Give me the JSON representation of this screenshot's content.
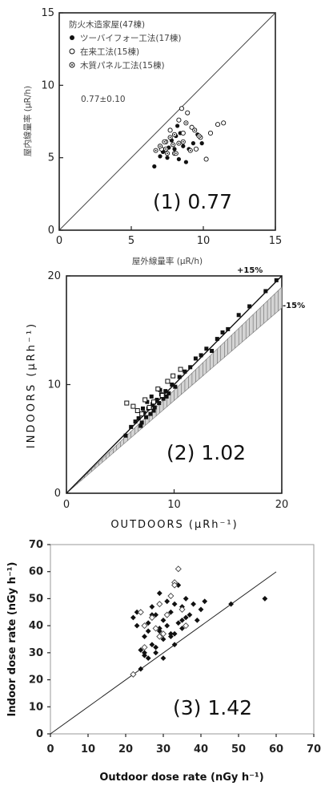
{
  "chart_data": [
    {
      "type": "scatter",
      "title": "防火木造家屋(47棟)",
      "xlabel": "屋外線量率 (μR/h)",
      "ylabel": "屋内線量率 (μR/h)",
      "xlim": [
        0,
        15
      ],
      "ylim": [
        0,
        15
      ],
      "xticks": [
        "0",
        "5",
        "10",
        "15"
      ],
      "yticks": [
        "0",
        "5",
        "10",
        "15"
      ],
      "reference_line": "y = x",
      "stat_text": "0.77±0.10",
      "ratio_label": "(1) 0.77",
      "series": [
        {
          "name": "ツーバイフォー工法(17棟)",
          "marker": "filled",
          "x": [
            6.6,
            7.0,
            7.2,
            7.5,
            7.6,
            7.8,
            8.0,
            8.1,
            8.3,
            8.4,
            8.6,
            8.8,
            9.0,
            9.3,
            9.6,
            9.9,
            8.2
          ],
          "y": [
            4.4,
            5.1,
            5.4,
            5.0,
            5.7,
            6.2,
            5.6,
            6.5,
            4.9,
            6.7,
            5.8,
            4.7,
            5.6,
            6.0,
            6.6,
            6.0,
            7.2
          ]
        },
        {
          "name": "在来工法(15棟)",
          "marker": "open",
          "x": [
            7.1,
            7.4,
            7.7,
            8.0,
            8.3,
            8.6,
            8.9,
            9.2,
            9.5,
            9.8,
            10.2,
            10.5,
            11.0,
            11.4,
            8.5
          ],
          "y": [
            5.6,
            6.1,
            6.9,
            5.3,
            7.6,
            6.7,
            8.1,
            7.1,
            5.6,
            6.4,
            4.9,
            6.7,
            7.3,
            7.4,
            8.4
          ]
        },
        {
          "name": "木質パネル工法(15棟)",
          "marker": "dotted",
          "x": [
            6.7,
            7.0,
            7.3,
            7.5,
            7.7,
            7.9,
            8.1,
            8.3,
            8.6,
            8.8,
            9.1,
            9.4,
            9.7,
            8.0,
            7.4
          ],
          "y": [
            5.5,
            5.8,
            6.1,
            5.3,
            6.4,
            5.9,
            5.3,
            6.0,
            6.1,
            7.4,
            5.5,
            6.9,
            6.5,
            6.6,
            5.6
          ]
        }
      ]
    },
    {
      "type": "scatter",
      "xlabel": "OUTDOORS (μRh⁻¹)",
      "ylabel": "INDOORS (μRh⁻¹)",
      "xlim": [
        0,
        20
      ],
      "ylim": [
        0,
        20
      ],
      "xticks": [
        "0",
        "10",
        "20"
      ],
      "yticks": [
        "0",
        "10",
        "20"
      ],
      "band_labels": [
        "+15%",
        "-15%"
      ],
      "ratio_label": "(2) 1.02",
      "series": [
        {
          "marker": "filled",
          "x": [
            5.5,
            6.0,
            6.4,
            6.7,
            7.0,
            7.2,
            7.4,
            7.6,
            7.8,
            8.0,
            8.2,
            8.4,
            8.6,
            8.8,
            9.0,
            9.2,
            9.5,
            9.8,
            10.1,
            10.5,
            11.0,
            11.5,
            12.0,
            12.5,
            13.0,
            13.5,
            14.0,
            14.5,
            15.0,
            16.0,
            17.0,
            18.5,
            19.5,
            7.1,
            7.5,
            8.1,
            8.7,
            9.3,
            6.9,
            7.9
          ],
          "y": [
            5.3,
            6.1,
            6.6,
            6.9,
            6.5,
            7.4,
            7.0,
            7.8,
            7.3,
            8.2,
            7.9,
            8.6,
            8.3,
            9.1,
            8.7,
            9.4,
            9.2,
            10.0,
            9.8,
            10.7,
            11.2,
            11.6,
            12.4,
            12.7,
            13.3,
            13.1,
            14.2,
            14.8,
            15.1,
            16.4,
            17.2,
            18.6,
            19.6,
            7.8,
            8.4,
            7.6,
            9.5,
            8.9,
            6.2,
            8.9
          ]
        },
        {
          "marker": "open",
          "x": [
            5.6,
            6.2,
            6.6,
            7.0,
            7.3,
            7.7,
            8.1,
            8.5,
            8.9,
            9.4,
            9.9,
            10.6
          ],
          "y": [
            8.3,
            8.0,
            7.6,
            7.3,
            8.6,
            7.9,
            8.4,
            9.6,
            9.0,
            10.3,
            10.8,
            11.4
          ]
        }
      ]
    },
    {
      "type": "scatter",
      "xlabel": "Outdoor dose rate (nGy h⁻¹)",
      "ylabel": "Indoor dose rate (nGy h⁻¹)",
      "xlim": [
        0,
        70
      ],
      "ylim": [
        0,
        70
      ],
      "xticks": [
        "0",
        "10",
        "20",
        "30",
        "40",
        "50",
        "60",
        "70"
      ],
      "yticks": [
        "0",
        "10",
        "20",
        "30",
        "40",
        "50",
        "60",
        "70"
      ],
      "reference_line": "y = x",
      "ratio_label": "(3) 1.42",
      "series": [
        {
          "marker": "filled-diamond",
          "x": [
            22,
            23,
            24,
            25,
            25,
            26,
            26,
            27,
            27,
            28,
            28,
            29,
            29,
            30,
            30,
            31,
            31,
            32,
            32,
            33,
            33,
            34,
            34,
            35,
            35,
            36,
            36,
            37,
            38,
            39,
            40,
            41,
            24,
            25,
            26,
            28,
            30,
            32,
            48,
            57,
            23,
            27,
            29,
            33,
            35
          ],
          "y": [
            43,
            40,
            31,
            29,
            36,
            28,
            41,
            33,
            47,
            30,
            44,
            38,
            52,
            35,
            42,
            40,
            49,
            37,
            45,
            33,
            48,
            41,
            55,
            39,
            47,
            43,
            50,
            44,
            48,
            42,
            46,
            49,
            24,
            30,
            38,
            32,
            28,
            36,
            48,
            50,
            45,
            44,
            39,
            37,
            42
          ]
        },
        {
          "marker": "open-diamond",
          "x": [
            22,
            24,
            25,
            27,
            28,
            29,
            30,
            31,
            32,
            33,
            34,
            35,
            36,
            25,
            29,
            33
          ],
          "y": [
            22,
            45,
            40,
            43,
            39,
            48,
            37,
            44,
            51,
            56,
            61,
            46,
            40,
            32,
            36,
            55
          ]
        }
      ]
    }
  ]
}
